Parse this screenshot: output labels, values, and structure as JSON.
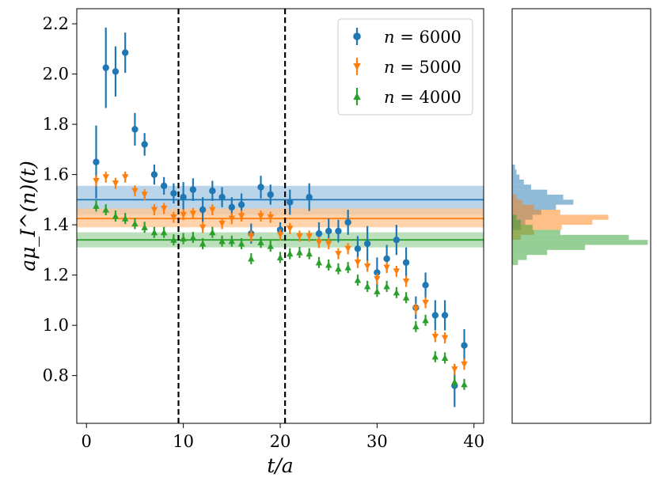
{
  "chart_data": {
    "type": "scatter",
    "xlabel": "t/a",
    "ylabel": "aμ_I^(n)(t)",
    "xlim": [
      -1,
      41
    ],
    "ylim": [
      0.61,
      2.26
    ],
    "xticks": [
      0,
      10,
      20,
      30,
      40
    ],
    "xtick_labels": [
      "0",
      "10",
      "20",
      "30",
      "40"
    ],
    "yticks": [
      0.8,
      1.0,
      1.2,
      1.4,
      1.6,
      1.8,
      2.0,
      2.2
    ],
    "ytick_labels": [
      "0.8",
      "1.0",
      "1.2",
      "1.4",
      "1.6",
      "1.8",
      "2.0",
      "2.2"
    ],
    "grid": false,
    "legend_position": "top-right",
    "fit_window": [
      9.5,
      20.5
    ],
    "series": [
      {
        "name": "n = 6000",
        "label_var": "n",
        "label_eq": " = 6000",
        "color": "#1f77b4",
        "fill": "#a6c8e3",
        "marker": "circle",
        "fit": {
          "value": 1.5,
          "band": [
            1.44,
            1.555
          ]
        },
        "x": [
          1,
          2,
          3,
          4,
          5,
          6,
          7,
          8,
          9,
          10,
          11,
          12,
          13,
          14,
          15,
          16,
          17,
          18,
          19,
          20,
          21,
          22,
          23,
          24,
          25,
          26,
          27,
          28,
          29,
          30,
          31,
          32,
          33,
          34,
          35,
          36,
          37,
          38,
          39
        ],
        "y": [
          1.65,
          2.025,
          2.01,
          2.085,
          1.78,
          1.72,
          1.6,
          1.555,
          1.525,
          1.51,
          1.54,
          1.46,
          1.535,
          1.51,
          1.47,
          1.48,
          1.365,
          1.55,
          1.52,
          1.38,
          1.49,
          null,
          1.51,
          1.365,
          1.375,
          1.375,
          1.41,
          1.305,
          1.325,
          1.21,
          1.265,
          1.34,
          1.25,
          1.07,
          1.16,
          1.04,
          1.04,
          0.76,
          0.92
        ],
        "err": [
          0.145,
          0.16,
          0.1,
          0.08,
          0.065,
          0.045,
          0.04,
          0.035,
          0.04,
          0.06,
          0.045,
          0.05,
          0.04,
          0.04,
          0.04,
          0.045,
          0.04,
          0.045,
          0.04,
          0.03,
          0.05,
          null,
          0.055,
          0.045,
          0.05,
          0.045,
          0.05,
          0.05,
          0.07,
          0.06,
          0.055,
          0.06,
          0.06,
          0.045,
          0.05,
          0.06,
          0.06,
          0.085,
          0.065
        ]
      },
      {
        "name": "n = 5000",
        "label_var": "n",
        "label_eq": " = 5000",
        "color": "#ff7f0e",
        "fill": "#ffc795",
        "marker": "triangle-down",
        "fit": {
          "value": 1.425,
          "band": [
            1.39,
            1.465
          ]
        },
        "x": [
          1,
          2,
          3,
          4,
          5,
          6,
          7,
          8,
          9,
          10,
          11,
          12,
          13,
          14,
          15,
          16,
          17,
          18,
          19,
          20,
          21,
          22,
          23,
          24,
          25,
          26,
          27,
          28,
          29,
          30,
          31,
          32,
          33,
          34,
          35,
          36,
          37,
          38,
          39
        ],
        "y": [
          1.575,
          1.59,
          1.565,
          1.59,
          1.535,
          1.52,
          1.46,
          1.465,
          1.43,
          1.44,
          1.445,
          1.39,
          1.46,
          1.405,
          1.425,
          1.435,
          1.355,
          1.435,
          1.43,
          1.36,
          1.385,
          1.355,
          1.355,
          1.33,
          1.325,
          1.285,
          1.305,
          1.25,
          1.235,
          1.185,
          1.23,
          1.215,
          1.175,
          1.065,
          1.09,
          0.955,
          0.95,
          0.825,
          0.845
        ]
      },
      {
        "name": "n = 4000",
        "label_var": "n",
        "label_eq": " = 4000",
        "color": "#2ca02c",
        "fill": "#a9d6a9",
        "marker": "triangle-up",
        "fit": {
          "value": 1.34,
          "band": [
            1.31,
            1.37
          ]
        },
        "x": [
          1,
          2,
          3,
          4,
          5,
          6,
          7,
          8,
          9,
          10,
          11,
          12,
          13,
          14,
          15,
          16,
          17,
          18,
          19,
          20,
          21,
          22,
          23,
          24,
          25,
          26,
          27,
          28,
          29,
          30,
          31,
          32,
          33,
          34,
          35,
          36,
          37,
          38,
          39
        ],
        "y": [
          1.475,
          1.46,
          1.435,
          1.425,
          1.405,
          1.39,
          1.37,
          1.37,
          1.34,
          1.345,
          1.35,
          1.325,
          1.37,
          1.335,
          1.335,
          1.325,
          1.265,
          1.33,
          1.315,
          1.27,
          1.285,
          1.29,
          1.285,
          1.25,
          1.24,
          1.225,
          1.23,
          1.18,
          1.155,
          1.135,
          1.155,
          1.13,
          1.11,
          0.995,
          1.02,
          0.875,
          0.87,
          0.775,
          0.765
        ]
      }
    ],
    "histograms": [
      {
        "series": "n = 6000",
        "color": "#1f77b4",
        "bins": [
          [
            1.62,
            1.64,
            4
          ],
          [
            1.6,
            1.62,
            6
          ],
          [
            1.58,
            1.6,
            10
          ],
          [
            1.56,
            1.58,
            16
          ],
          [
            1.54,
            1.56,
            26
          ],
          [
            1.52,
            1.54,
            48
          ],
          [
            1.5,
            1.52,
            70
          ],
          [
            1.48,
            1.5,
            84
          ],
          [
            1.46,
            1.48,
            60
          ],
          [
            1.44,
            1.46,
            40
          ],
          [
            1.42,
            1.44,
            28
          ],
          [
            1.4,
            1.42,
            18
          ],
          [
            1.38,
            1.4,
            12
          ]
        ]
      },
      {
        "series": "n = 5000",
        "color": "#ff7f0e",
        "bins": [
          [
            1.5,
            1.52,
            6
          ],
          [
            1.48,
            1.5,
            14
          ],
          [
            1.46,
            1.48,
            30
          ],
          [
            1.44,
            1.46,
            66
          ],
          [
            1.42,
            1.44,
            132
          ],
          [
            1.4,
            1.42,
            110
          ],
          [
            1.38,
            1.4,
            68
          ],
          [
            1.36,
            1.38,
            30
          ],
          [
            1.34,
            1.36,
            12
          ]
        ]
      },
      {
        "series": "n = 4000",
        "color": "#2ca02c",
        "bins": [
          [
            1.42,
            1.44,
            6
          ],
          [
            1.4,
            1.42,
            12
          ],
          [
            1.38,
            1.4,
            28
          ],
          [
            1.36,
            1.38,
            66
          ],
          [
            1.34,
            1.36,
            160
          ],
          [
            1.32,
            1.34,
            186
          ],
          [
            1.3,
            1.32,
            100
          ],
          [
            1.28,
            1.3,
            48
          ],
          [
            1.26,
            1.28,
            20
          ],
          [
            1.24,
            1.26,
            8
          ]
        ]
      }
    ]
  }
}
